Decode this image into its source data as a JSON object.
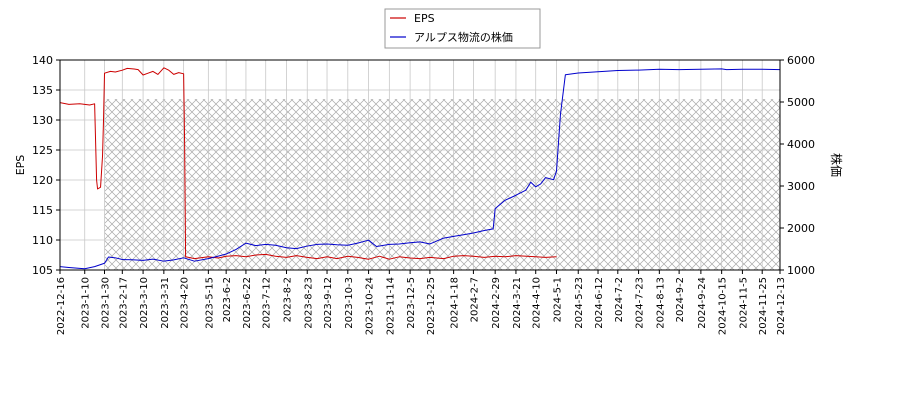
{
  "chart_data": {
    "type": "line",
    "legend": {
      "placement": "top-center",
      "entries": [
        {
          "label": "EPS",
          "color": "#cc0000"
        },
        {
          "label": "アルプス物流の株価",
          "color": "#0000cc"
        }
      ]
    },
    "ylabel_left": "EPS",
    "ylabel_right": "株価",
    "ylim_left": [
      105,
      140
    ],
    "ylim_right": [
      1000,
      6000
    ],
    "yticks_left": [
      105,
      110,
      115,
      120,
      125,
      130,
      135,
      140
    ],
    "yticks_right": [
      1000,
      2000,
      3000,
      4000,
      5000,
      6000
    ],
    "xlim": [
      "2022-12-16",
      "2024-12-13"
    ],
    "xticks": [
      "2022-12-16",
      "2023-1-10",
      "2023-1-30",
      "2023-2-17",
      "2023-3-10",
      "2023-3-31",
      "2023-4-20",
      "2023-5-15",
      "2023-6-2",
      "2023-6-22",
      "2023-7-12",
      "2023-8-2",
      "2023-8-23",
      "2023-9-12",
      "2023-10-3",
      "2023-10-24",
      "2023-11-14",
      "2023-12-5",
      "2023-12-25",
      "2024-1-18",
      "2024-2-7",
      "2024-2-29",
      "2024-3-21",
      "2024-4-10",
      "2024-5-1",
      "2024-5-23",
      "2024-6-12",
      "2024-7-2",
      "2024-7-23",
      "2024-8-13",
      "2024-9-2",
      "2024-9-24",
      "2024-10-15",
      "2024-11-5",
      "2024-11-25",
      "2024-12-13"
    ],
    "grid": true,
    "hatched_region": {
      "from": "2023-1-30",
      "to": "2024-12-13",
      "y_top_left_axis": 133.5
    },
    "series": [
      {
        "name": "EPS",
        "axis": "left",
        "color": "#cc0000",
        "points": [
          [
            "2022-12-16",
            132.9
          ],
          [
            "2022-12-25",
            132.6
          ],
          [
            "2023-1-5",
            132.7
          ],
          [
            "2023-1-15",
            132.5
          ],
          [
            "2023-1-20",
            132.7
          ],
          [
            "2023-1-22",
            120
          ],
          [
            "2023-1-23",
            118.5
          ],
          [
            "2023-1-26",
            118.8
          ],
          [
            "2023-1-28",
            124
          ],
          [
            "2023-1-29",
            130
          ],
          [
            "2023-1-30",
            137.8
          ],
          [
            "2023-2-5",
            138.1
          ],
          [
            "2023-2-10",
            138
          ],
          [
            "2023-2-17",
            138.3
          ],
          [
            "2023-2-22",
            138.6
          ],
          [
            "2023-3-1",
            138.5
          ],
          [
            "2023-3-5",
            138.4
          ],
          [
            "2023-3-10",
            137.5
          ],
          [
            "2023-3-15",
            137.8
          ],
          [
            "2023-3-20",
            138.1
          ],
          [
            "2023-3-25",
            137.6
          ],
          [
            "2023-3-31",
            138.7
          ],
          [
            "2023-4-5",
            138.3
          ],
          [
            "2023-4-10",
            137.6
          ],
          [
            "2023-4-15",
            137.9
          ],
          [
            "2023-4-20",
            137.7
          ],
          [
            "2023-4-21",
            126
          ],
          [
            "2023-4-22",
            107.2
          ],
          [
            "2023-5-1",
            106.9
          ],
          [
            "2023-5-15",
            107.2
          ],
          [
            "2023-5-25",
            107
          ],
          [
            "2023-6-2",
            107.3
          ],
          [
            "2023-6-12",
            107.4
          ],
          [
            "2023-6-22",
            107.2
          ],
          [
            "2023-7-2",
            107.5
          ],
          [
            "2023-7-12",
            107.6
          ],
          [
            "2023-7-22",
            107.3
          ],
          [
            "2023-8-2",
            107.1
          ],
          [
            "2023-8-12",
            107.4
          ],
          [
            "2023-8-23",
            107.1
          ],
          [
            "2023-9-2",
            106.9
          ],
          [
            "2023-9-12",
            107.2
          ],
          [
            "2023-9-22",
            106.9
          ],
          [
            "2023-10-3",
            107.3
          ],
          [
            "2023-10-13",
            107.1
          ],
          [
            "2023-10-24",
            106.8
          ],
          [
            "2023-11-4",
            107.3
          ],
          [
            "2023-11-14",
            106.8
          ],
          [
            "2023-11-24",
            107.2
          ],
          [
            "2023-12-5",
            107
          ],
          [
            "2023-12-15",
            106.9
          ],
          [
            "2023-12-25",
            107.1
          ],
          [
            "2024-1-8",
            106.9
          ],
          [
            "2024-1-18",
            107.3
          ],
          [
            "2024-1-28",
            107.4
          ],
          [
            "2024-2-7",
            107.3
          ],
          [
            "2024-2-18",
            107.1
          ],
          [
            "2024-2-29",
            107.3
          ],
          [
            "2024-3-10",
            107.2
          ],
          [
            "2024-3-21",
            107.4
          ],
          [
            "2024-4-1",
            107.3
          ],
          [
            "2024-4-10",
            107.2
          ],
          [
            "2024-4-20",
            107.1
          ],
          [
            "2024-5-1",
            107.2
          ]
        ]
      },
      {
        "name": "アルプス物流の株価",
        "axis": "right",
        "color": "#0000cc",
        "points": [
          [
            "2022-12-16",
            1080
          ],
          [
            "2022-12-25",
            1060
          ],
          [
            "2023-1-5",
            1040
          ],
          [
            "2023-1-10",
            1030
          ],
          [
            "2023-1-20",
            1080
          ],
          [
            "2023-1-30",
            1160
          ],
          [
            "2023-2-3",
            1310
          ],
          [
            "2023-2-10",
            1290
          ],
          [
            "2023-2-17",
            1250
          ],
          [
            "2023-3-1",
            1240
          ],
          [
            "2023-3-10",
            1230
          ],
          [
            "2023-3-20",
            1260
          ],
          [
            "2023-3-31",
            1210
          ],
          [
            "2023-4-10",
            1240
          ],
          [
            "2023-4-20",
            1290
          ],
          [
            "2023-5-1",
            1210
          ],
          [
            "2023-5-15",
            1270
          ],
          [
            "2023-5-25",
            1330
          ],
          [
            "2023-6-2",
            1380
          ],
          [
            "2023-6-12",
            1490
          ],
          [
            "2023-6-22",
            1640
          ],
          [
            "2023-7-2",
            1580
          ],
          [
            "2023-7-12",
            1610
          ],
          [
            "2023-7-22",
            1590
          ],
          [
            "2023-8-2",
            1530
          ],
          [
            "2023-8-12",
            1510
          ],
          [
            "2023-8-23",
            1570
          ],
          [
            "2023-9-2",
            1610
          ],
          [
            "2023-9-12",
            1620
          ],
          [
            "2023-9-22",
            1600
          ],
          [
            "2023-10-3",
            1590
          ],
          [
            "2023-10-13",
            1640
          ],
          [
            "2023-10-24",
            1710
          ],
          [
            "2023-11-1",
            1560
          ],
          [
            "2023-11-14",
            1610
          ],
          [
            "2023-11-24",
            1620
          ],
          [
            "2023-12-5",
            1650
          ],
          [
            "2023-12-15",
            1670
          ],
          [
            "2023-12-25",
            1620
          ],
          [
            "2024-1-8",
            1760
          ],
          [
            "2024-1-18",
            1800
          ],
          [
            "2024-1-28",
            1840
          ],
          [
            "2024-2-7",
            1880
          ],
          [
            "2024-2-18",
            1940
          ],
          [
            "2024-2-27",
            1980
          ],
          [
            "2024-2-29",
            2460
          ],
          [
            "2024-3-10",
            2660
          ],
          [
            "2024-3-21",
            2780
          ],
          [
            "2024-3-31",
            2900
          ],
          [
            "2024-4-5",
            3090
          ],
          [
            "2024-4-10",
            2980
          ],
          [
            "2024-4-15",
            3050
          ],
          [
            "2024-4-20",
            3200
          ],
          [
            "2024-4-28",
            3150
          ],
          [
            "2024-5-1",
            3350
          ],
          [
            "2024-5-5",
            4700
          ],
          [
            "2024-5-10",
            5650
          ],
          [
            "2024-5-23",
            5690
          ],
          [
            "2024-6-12",
            5720
          ],
          [
            "2024-7-2",
            5750
          ],
          [
            "2024-7-23",
            5760
          ],
          [
            "2024-8-13",
            5780
          ],
          [
            "2024-9-2",
            5770
          ],
          [
            "2024-9-24",
            5780
          ],
          [
            "2024-10-15",
            5790
          ],
          [
            "2024-10-20",
            5770
          ],
          [
            "2024-11-5",
            5780
          ],
          [
            "2024-11-25",
            5780
          ],
          [
            "2024-12-13",
            5770
          ]
        ]
      }
    ]
  }
}
